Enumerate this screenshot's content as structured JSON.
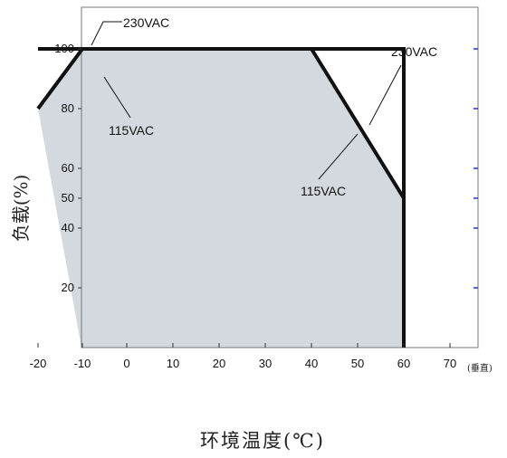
{
  "chart_data": {
    "type": "area",
    "xlabel": "环境温度(℃)",
    "ylabel": "负载(%)",
    "x_unit_note": "(垂直)",
    "xlim": [
      -20,
      75
    ],
    "ylim": [
      0,
      110
    ],
    "x_ticks": [
      -20,
      -10,
      0,
      10,
      20,
      30,
      40,
      50,
      60,
      70
    ],
    "y_ticks": [
      20,
      40,
      50,
      60,
      80,
      100
    ],
    "grid": false,
    "fill_color": "#d3d9de",
    "line_color": "#111111",
    "right_tick_color": "#2233cc",
    "series": [
      {
        "name": "230VAC",
        "x": [
          -20,
          60,
          60
        ],
        "y": [
          100,
          100,
          50
        ]
      },
      {
        "name": "115VAC",
        "x": [
          -20,
          -10,
          40,
          60,
          60
        ],
        "y": [
          80,
          100,
          100,
          50,
          0
        ]
      }
    ],
    "annotations": [
      {
        "text": "230VAC",
        "target": "230VAC left plateau"
      },
      {
        "text": "230VAC",
        "target": "230VAC derating line"
      },
      {
        "text": "115VAC",
        "target": "115VAC rising segment"
      },
      {
        "text": "115VAC",
        "target": "115VAC derating line"
      }
    ]
  }
}
